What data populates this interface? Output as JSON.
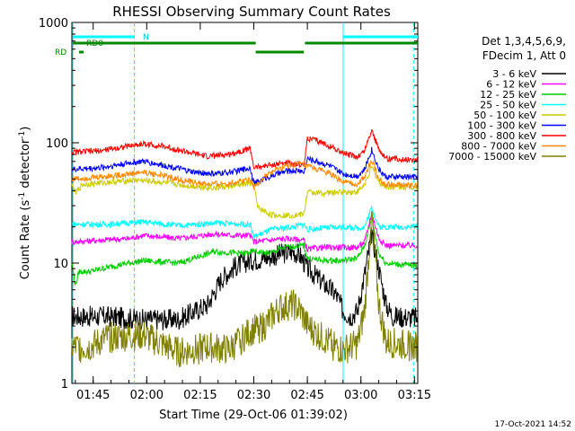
{
  "chart_data": {
    "type": "line",
    "title": "RHESSI Observing Summary Count Rates",
    "xlabel": "Start Time (29-Oct-06 01:39:02)",
    "ylabel": "Count Rate (s⁻¹ detector⁻¹)",
    "ylabel_parts": {
      "a": "Count Rate (s",
      "b": "-1",
      "c": " detector",
      "d": "-1",
      "e": ")"
    },
    "yscale": "log",
    "ylim": [
      1,
      1000
    ],
    "xlim_minutes": [
      0,
      96.9
    ],
    "x_ticks": [
      {
        "label": "01:45",
        "minute": 5.97
      },
      {
        "label": "02:00",
        "minute": 20.97
      },
      {
        "label": "02:15",
        "minute": 35.97
      },
      {
        "label": "02:30",
        "minute": 50.97
      },
      {
        "label": "02:45",
        "minute": 65.97
      },
      {
        "label": "03:00",
        "minute": 80.97
      },
      {
        "label": "03:15",
        "minute": 95.97
      }
    ],
    "y_ticks": [
      {
        "label": "1",
        "value": 1
      },
      {
        "label": "10",
        "value": 10
      },
      {
        "label": "100",
        "value": 100
      },
      {
        "label": "1000",
        "value": 1000
      }
    ],
    "legend_header": [
      "Det 1,3,4,5,6,9,",
      "FDecim 1, Att 0"
    ],
    "flag_labels": {
      "n": "N",
      "rd": "RD0",
      "rd_short": "RD"
    },
    "flag_bars": {
      "night": [
        [
          0.3,
          17.5
        ],
        [
          76.0,
          96.9
        ]
      ],
      "rd": [
        [
          0.3,
          51.5
        ],
        [
          51.5,
          65.0
        ],
        [
          65.3,
          96.9
        ]
      ]
    },
    "vertical_markers_minutes": [
      0.3,
      17.5,
      76.0,
      95.7
    ],
    "series": [
      {
        "name": "3 - 6 keV",
        "color": "#000000",
        "values": [
          [
            0,
            3.6
          ],
          [
            10,
            3.6
          ],
          [
            20,
            3.4
          ],
          [
            30,
            3.4
          ],
          [
            38,
            4.5
          ],
          [
            42,
            7.5
          ],
          [
            46,
            9.5
          ],
          [
            50,
            10.5
          ],
          [
            54,
            11.0
          ],
          [
            58,
            11.8
          ],
          [
            62,
            12.5
          ],
          [
            64,
            11.5
          ],
          [
            66,
            9.0
          ],
          [
            70,
            7.0
          ],
          [
            74,
            5.5
          ],
          [
            76,
            4.0
          ],
          [
            78,
            3.6
          ],
          [
            80,
            4.0
          ],
          [
            82,
            8.0
          ],
          [
            84,
            17.5
          ],
          [
            86,
            9.0
          ],
          [
            88,
            4.5
          ],
          [
            90,
            3.6
          ],
          [
            96.9,
            3.5
          ]
        ]
      },
      {
        "name": "6 - 12 keV",
        "color": "#ff00ff",
        "values": [
          [
            0,
            15
          ],
          [
            8,
            15.5
          ],
          [
            16,
            16
          ],
          [
            20,
            17
          ],
          [
            30,
            16
          ],
          [
            40,
            17.5
          ],
          [
            45,
            17
          ],
          [
            50,
            17
          ],
          [
            51,
            15
          ],
          [
            55,
            15.5
          ],
          [
            60,
            16
          ],
          [
            65,
            15.5
          ],
          [
            66,
            13
          ],
          [
            70,
            13.5
          ],
          [
            76,
            13.5
          ],
          [
            80,
            13.5
          ],
          [
            82,
            15
          ],
          [
            84,
            26
          ],
          [
            86,
            16
          ],
          [
            88,
            14
          ],
          [
            96.9,
            14
          ]
        ]
      },
      {
        "name": "12 - 25 keV",
        "color": "#00cc00",
        "values": [
          [
            0,
            10
          ],
          [
            1,
            6.5
          ],
          [
            2,
            8.5
          ],
          [
            5,
            8.5
          ],
          [
            12,
            9.5
          ],
          [
            20,
            10.5
          ],
          [
            30,
            10
          ],
          [
            40,
            12.5
          ],
          [
            48,
            12
          ],
          [
            51,
            12.5
          ],
          [
            55,
            12
          ],
          [
            60,
            13.5
          ],
          [
            65,
            14
          ],
          [
            66,
            11
          ],
          [
            70,
            10.5
          ],
          [
            76,
            10.5
          ],
          [
            80,
            11
          ],
          [
            82,
            14
          ],
          [
            84,
            24
          ],
          [
            86,
            12
          ],
          [
            88,
            10
          ],
          [
            96.9,
            9.5
          ]
        ]
      },
      {
        "name": "25 - 50 keV",
        "color": "#00ffff",
        "values": [
          [
            0,
            21
          ],
          [
            10,
            21
          ],
          [
            20,
            22
          ],
          [
            30,
            20.5
          ],
          [
            40,
            21.5
          ],
          [
            50,
            21
          ],
          [
            51,
            16.5
          ],
          [
            56,
            19
          ],
          [
            62,
            20
          ],
          [
            65,
            21
          ],
          [
            66,
            19
          ],
          [
            70,
            19.5
          ],
          [
            76,
            20
          ],
          [
            80,
            19.5
          ],
          [
            82,
            20
          ],
          [
            84,
            29
          ],
          [
            86,
            20
          ],
          [
            88,
            20
          ],
          [
            96.9,
            20
          ]
        ]
      },
      {
        "name": "50 - 100 keV",
        "color": "#cccc00",
        "values": [
          [
            0,
            44
          ],
          [
            1,
            38
          ],
          [
            3,
            45
          ],
          [
            10,
            47
          ],
          [
            18,
            49
          ],
          [
            25,
            47
          ],
          [
            32,
            44
          ],
          [
            40,
            42
          ],
          [
            48,
            45
          ],
          [
            51,
            46
          ],
          [
            52,
            29
          ],
          [
            56,
            25
          ],
          [
            62,
            25
          ],
          [
            65,
            25.5
          ],
          [
            66,
            39
          ],
          [
            70,
            38
          ],
          [
            76,
            39
          ],
          [
            80,
            39
          ],
          [
            82,
            45
          ],
          [
            84,
            63
          ],
          [
            86,
            47
          ],
          [
            88,
            43
          ],
          [
            96.9,
            43
          ]
        ]
      },
      {
        "name": "100 - 300 keV",
        "color": "#0000ff",
        "values": [
          [
            0,
            60
          ],
          [
            8,
            62
          ],
          [
            16,
            68
          ],
          [
            20,
            70
          ],
          [
            28,
            63
          ],
          [
            34,
            57
          ],
          [
            40,
            55
          ],
          [
            46,
            58
          ],
          [
            50,
            62
          ],
          [
            51,
            46
          ],
          [
            55,
            52
          ],
          [
            60,
            58
          ],
          [
            64,
            59
          ],
          [
            65,
            56
          ],
          [
            66,
            74
          ],
          [
            72,
            65
          ],
          [
            76,
            55
          ],
          [
            80,
            53
          ],
          [
            82,
            60
          ],
          [
            84,
            88
          ],
          [
            86,
            60
          ],
          [
            88,
            52
          ],
          [
            96.9,
            52
          ]
        ]
      },
      {
        "name": "300 - 800 keV",
        "color": "#ff0000",
        "values": [
          [
            0,
            83
          ],
          [
            8,
            86
          ],
          [
            16,
            94
          ],
          [
            20,
            98
          ],
          [
            26,
            93
          ],
          [
            32,
            84
          ],
          [
            38,
            77
          ],
          [
            44,
            80
          ],
          [
            50,
            90
          ],
          [
            51,
            62
          ],
          [
            55,
            65
          ],
          [
            60,
            68
          ],
          [
            64,
            66
          ],
          [
            65,
            64
          ],
          [
            66,
            110
          ],
          [
            72,
            95
          ],
          [
            76,
            82
          ],
          [
            80,
            76
          ],
          [
            82,
            86
          ],
          [
            84,
            128
          ],
          [
            86,
            88
          ],
          [
            88,
            74
          ],
          [
            96.9,
            72
          ]
        ]
      },
      {
        "name": "800 - 7000 keV",
        "color": "#ff8800",
        "values": [
          [
            0,
            50
          ],
          [
            8,
            52
          ],
          [
            16,
            55
          ],
          [
            20,
            57
          ],
          [
            26,
            53
          ],
          [
            32,
            48
          ],
          [
            38,
            45
          ],
          [
            44,
            46
          ],
          [
            50,
            50
          ],
          [
            51,
            43
          ],
          [
            55,
            55
          ],
          [
            60,
            64
          ],
          [
            64,
            67
          ],
          [
            65,
            65
          ],
          [
            66,
            64
          ],
          [
            72,
            56
          ],
          [
            76,
            47
          ],
          [
            80,
            45
          ],
          [
            82,
            52
          ],
          [
            84,
            72
          ],
          [
            86,
            50
          ],
          [
            88,
            45
          ],
          [
            96.9,
            44
          ]
        ]
      },
      {
        "name": "7000 - 15000 keV",
        "color": "#808000",
        "values": [
          [
            0,
            2.0
          ],
          [
            5,
            2.0
          ],
          [
            10,
            2.4
          ],
          [
            20,
            2.5
          ],
          [
            30,
            1.8
          ],
          [
            38,
            2.0
          ],
          [
            44,
            1.9
          ],
          [
            50,
            2.7
          ],
          [
            54,
            3.0
          ],
          [
            58,
            4.2
          ],
          [
            62,
            4.5
          ],
          [
            64,
            4.0
          ],
          [
            66,
            3.0
          ],
          [
            70,
            2.4
          ],
          [
            74,
            2.0
          ],
          [
            76,
            1.9
          ],
          [
            80,
            2.1
          ],
          [
            82,
            4.0
          ],
          [
            84,
            25
          ],
          [
            86,
            4.5
          ],
          [
            88,
            2.2
          ],
          [
            96.9,
            2.0
          ]
        ]
      }
    ]
  },
  "footer": {
    "timestamp": "17-Oct-2021 14:52"
  }
}
